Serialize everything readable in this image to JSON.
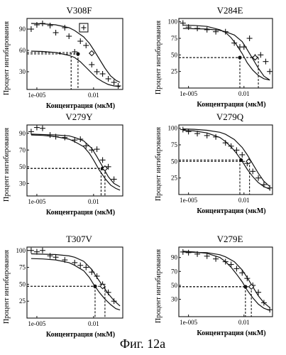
{
  "figure_caption": "Фиг. 12а",
  "chart_data": [
    {
      "type": "line",
      "title": "V308F",
      "xlabel": "Концентрация (мкМ)",
      "ylabel": "Процент ингибирования",
      "xscale": "log",
      "xlim": [
        3e-06,
        0.35
      ],
      "xticks": [
        {
          "v": 1e-05,
          "label": "1e-005"
        },
        {
          "v": 0.01,
          "label": "0.01"
        }
      ],
      "ylim": [
        5,
        105
      ],
      "yticks": [
        30,
        60,
        90
      ],
      "series": [
        {
          "style": "curve",
          "x": [
            5e-06,
            2e-05,
            0.0001,
            0.0005,
            0.001,
            0.002,
            0.004,
            0.008,
            0.015,
            0.03,
            0.06,
            0.12,
            0.25
          ],
          "y": [
            59,
            58.5,
            57,
            53,
            50,
            44,
            36,
            28,
            21,
            16,
            12,
            10,
            9
          ]
        },
        {
          "style": "curve",
          "x": [
            5e-06,
            2e-05,
            0.0001,
            0.0005,
            0.001,
            0.003,
            0.006,
            0.01,
            0.02,
            0.04,
            0.08,
            0.15,
            0.25
          ],
          "y": [
            98,
            97.5,
            96,
            92,
            88,
            79,
            70,
            61,
            48,
            35,
            24,
            18,
            15
          ]
        },
        {
          "style": "points",
          "x": [
            5e-06,
            1e-05,
            2e-05,
            5e-05,
            0.0001,
            0.0003,
            0.0005,
            0.001,
            0.002,
            0.004,
            0.008,
            0.015,
            0.03,
            0.06,
            0.12,
            0.2
          ],
          "y": [
            90,
            96,
            98,
            95,
            85,
            92,
            80,
            58,
            73,
            67,
            40,
            30,
            27,
            20,
            15,
            10
          ]
        }
      ],
      "ic50_lines": [
        {
          "y": 57,
          "x": 0.00065
        },
        {
          "y": 55,
          "x": 0.0015
        }
      ],
      "markers": [
        {
          "shape": "circle",
          "x": 0.0015,
          "y": 55
        },
        {
          "shape": "diamond",
          "x": 0.008,
          "y": 56
        },
        {
          "shape": "boxed-plus",
          "x": 0.003,
          "y": 92
        }
      ]
    },
    {
      "type": "line",
      "title": "V284E",
      "xlabel": "Концентрация (мкМ)",
      "ylabel": "Процент ингибирования",
      "xscale": "log",
      "xlim": [
        3e-06,
        0.35
      ],
      "xticks": [
        {
          "v": 1e-05,
          "label": "1e-005"
        },
        {
          "v": 0.01,
          "label": "0.01"
        }
      ],
      "ylim": [
        0,
        105
      ],
      "yticks": [
        25,
        50,
        75,
        100
      ],
      "series": [
        {
          "style": "curve",
          "x": [
            5e-06,
            2e-05,
            0.0001,
            0.0005,
            0.001,
            0.002,
            0.004,
            0.008,
            0.015,
            0.03,
            0.06,
            0.12,
            0.25
          ],
          "y": [
            95,
            94.5,
            93,
            88,
            84,
            76,
            65,
            52,
            38,
            27,
            19,
            14,
            12
          ]
        },
        {
          "style": "curve",
          "x": [
            5e-06,
            2e-05,
            0.0001,
            0.0005,
            0.001,
            0.003,
            0.008,
            0.015,
            0.03,
            0.06,
            0.12,
            0.25
          ],
          "y": [
            90,
            89.5,
            89,
            87,
            85,
            80,
            70,
            58,
            44,
            30,
            18,
            12
          ]
        },
        {
          "style": "points",
          "x": [
            5e-06,
            1e-05,
            3e-05,
            0.0001,
            0.0003,
            0.001,
            0.003,
            0.006,
            0.01,
            0.02,
            0.04,
            0.08,
            0.15,
            0.25
          ],
          "y": [
            98,
            92,
            90,
            88,
            85,
            85,
            68,
            62,
            62,
            75,
            47,
            50,
            40,
            25
          ]
        }
      ],
      "ic50_lines": [
        {
          "y": 46,
          "x": 0.006
        },
        {
          "y": 46,
          "x": 0.06
        }
      ],
      "markers": [
        {
          "shape": "circle",
          "x": 0.006,
          "y": 46
        },
        {
          "shape": "diamond",
          "x": 0.04,
          "y": 46
        }
      ]
    },
    {
      "type": "line",
      "title": "V279Y",
      "xlabel": "Концентрация (мкМ)",
      "ylabel": "Процент ингибирования",
      "xscale": "log",
      "xlim": [
        3e-06,
        0.35
      ],
      "xticks": [
        {
          "v": 1e-05,
          "label": "1e-005"
        },
        {
          "v": 0.01,
          "label": "0.01"
        }
      ],
      "ylim": [
        15,
        100
      ],
      "yticks": [
        30,
        50,
        70,
        90
      ],
      "series": [
        {
          "style": "curve",
          "x": [
            5e-06,
            2e-05,
            0.0001,
            0.0005,
            0.001,
            0.003,
            0.006,
            0.01,
            0.02,
            0.04,
            0.08,
            0.15,
            0.25
          ],
          "y": [
            88,
            87.5,
            86,
            83,
            80,
            74,
            66,
            58,
            46,
            36,
            28,
            24,
            22
          ]
        },
        {
          "style": "curve",
          "x": [
            5e-06,
            2e-05,
            0.0001,
            0.0005,
            0.001,
            0.003,
            0.008,
            0.015,
            0.03,
            0.06,
            0.12,
            0.25
          ],
          "y": [
            89,
            88.5,
            88,
            87,
            85,
            81,
            72,
            62,
            50,
            38,
            30,
            26
          ]
        },
        {
          "style": "points",
          "x": [
            5e-06,
            1e-05,
            2e-05,
            5e-05,
            0.0001,
            0.0003,
            0.001,
            0.002,
            0.004,
            0.008,
            0.015,
            0.03,
            0.06,
            0.12
          ],
          "y": [
            92,
            97,
            96,
            88,
            86,
            85,
            82,
            83,
            75,
            70,
            71,
            58,
            50,
            35
          ]
        }
      ],
      "ic50_lines": [
        {
          "y": 48,
          "x": 0.025
        },
        {
          "y": 48,
          "x": 0.04
        }
      ],
      "markers": [
        {
          "shape": "circle",
          "x": 0.03,
          "y": 48
        },
        {
          "shape": "diamond",
          "x": 0.04,
          "y": 48
        }
      ]
    },
    {
      "type": "line",
      "title": "V279Q",
      "xlabel": "Концентрация (мкМ)",
      "ylabel": "Процент ингибирования",
      "xscale": "log",
      "xlim": [
        3e-06,
        0.35
      ],
      "xticks": [
        {
          "v": 1e-05,
          "label": "1e-005"
        },
        {
          "v": 0.01,
          "label": "0.01"
        }
      ],
      "ylim": [
        0,
        105
      ],
      "yticks": [
        25,
        50,
        75,
        100
      ],
      "series": [
        {
          "style": "curve",
          "x": [
            5e-06,
            2e-05,
            0.0001,
            0.0005,
            0.001,
            0.002,
            0.004,
            0.008,
            0.015,
            0.03,
            0.06,
            0.12,
            0.25
          ],
          "y": [
            97,
            96,
            93,
            86,
            80,
            72,
            62,
            50,
            38,
            27,
            18,
            12,
            8
          ]
        },
        {
          "style": "curve",
          "x": [
            5e-06,
            2e-05,
            0.0001,
            0.0005,
            0.001,
            0.003,
            0.008,
            0.015,
            0.03,
            0.06,
            0.12,
            0.25
          ],
          "y": [
            99,
            98.5,
            97,
            94,
            91,
            83,
            71,
            60,
            46,
            32,
            20,
            12
          ]
        },
        {
          "style": "points",
          "x": [
            5e-06,
            1e-05,
            3e-05,
            0.0001,
            0.0003,
            0.001,
            0.002,
            0.004,
            0.008,
            0.015,
            0.03,
            0.06,
            0.12,
            0.25
          ],
          "y": [
            98,
            95,
            92,
            89,
            87,
            78,
            73,
            67,
            60,
            47,
            35,
            25,
            15,
            10
          ]
        }
      ],
      "ic50_lines": [
        {
          "y": 52,
          "x": 0.006
        },
        {
          "y": 50,
          "x": 0.02
        }
      ],
      "markers": [
        {
          "shape": "circle",
          "x": 0.007,
          "y": 52
        },
        {
          "shape": "diamond",
          "x": 0.018,
          "y": 50
        }
      ]
    },
    {
      "type": "line",
      "title": "T307V",
      "xlabel": "Концентрация (мкМ)",
      "ylabel": "Процент ингибирования",
      "xscale": "log",
      "xlim": [
        3e-06,
        0.35
      ],
      "xticks": [
        {
          "v": 1e-05,
          "label": "1e-005"
        },
        {
          "v": 0.01,
          "label": "0.01"
        }
      ],
      "ylim": [
        0,
        105
      ],
      "yticks": [
        25,
        50,
        75,
        100
      ],
      "series": [
        {
          "style": "curve",
          "x": [
            5e-06,
            2e-05,
            0.0001,
            0.0005,
            0.001,
            0.003,
            0.006,
            0.01,
            0.02,
            0.04,
            0.08,
            0.15,
            0.25
          ],
          "y": [
            88,
            87.5,
            86,
            82,
            78,
            70,
            60,
            50,
            38,
            28,
            20,
            14,
            12
          ]
        },
        {
          "style": "curve",
          "x": [
            5e-06,
            2e-05,
            0.0001,
            0.0005,
            0.001,
            0.003,
            0.008,
            0.015,
            0.03,
            0.06,
            0.12,
            0.25
          ],
          "y": [
            95,
            94.5,
            94,
            92,
            90,
            84,
            72,
            60,
            48,
            36,
            26,
            18
          ]
        },
        {
          "style": "points",
          "x": [
            5e-06,
            1e-05,
            2e-05,
            5e-05,
            0.0001,
            0.0003,
            0.001,
            0.002,
            0.004,
            0.008,
            0.015,
            0.03,
            0.06,
            0.12
          ],
          "y": [
            100,
            98,
            100,
            92,
            90,
            86,
            82,
            78,
            75,
            68,
            62,
            50,
            38,
            25
          ]
        }
      ],
      "ic50_lines": [
        {
          "y": 47,
          "x": 0.012
        },
        {
          "y": 47,
          "x": 0.04
        }
      ],
      "markers": [
        {
          "shape": "circle",
          "x": 0.012,
          "y": 47
        },
        {
          "shape": "diamond",
          "x": 0.03,
          "y": 47
        }
      ]
    },
    {
      "type": "line",
      "title": "V279E",
      "xlabel": "Концентрация (мкМ)",
      "ylabel": "Процент ингибирования",
      "xscale": "log",
      "xlim": [
        3e-06,
        0.35
      ],
      "xticks": [
        {
          "v": 1e-05,
          "label": "1e-005"
        },
        {
          "v": 0.01,
          "label": "0.01"
        }
      ],
      "ylim": [
        5,
        105
      ],
      "yticks": [
        30,
        50,
        70,
        90
      ],
      "series": [
        {
          "style": "curve",
          "x": [
            5e-06,
            2e-05,
            0.0001,
            0.0005,
            0.001,
            0.002,
            0.004,
            0.008,
            0.015,
            0.03,
            0.06,
            0.12,
            0.25
          ],
          "y": [
            99,
            98,
            96,
            90,
            84,
            76,
            66,
            55,
            43,
            32,
            23,
            17,
            14
          ]
        },
        {
          "style": "curve",
          "x": [
            5e-06,
            2e-05,
            0.0001,
            0.0005,
            0.001,
            0.003,
            0.008,
            0.015,
            0.03,
            0.06,
            0.12,
            0.25
          ],
          "y": [
            98,
            97.5,
            97,
            94,
            91,
            84,
            72,
            61,
            48,
            35,
            25,
            18
          ]
        },
        {
          "style": "points",
          "x": [
            5e-06,
            1e-05,
            3e-05,
            0.0001,
            0.0003,
            0.001,
            0.002,
            0.004,
            0.008,
            0.015,
            0.03,
            0.06,
            0.12,
            0.25
          ],
          "y": [
            98,
            97,
            95,
            92,
            88,
            84,
            80,
            74,
            68,
            60,
            50,
            40,
            25,
            15
          ]
        }
      ],
      "ic50_lines": [
        {
          "y": 48,
          "x": 0.012
        },
        {
          "y": 48,
          "x": 0.025
        }
      ],
      "markers": [
        {
          "shape": "circle",
          "x": 0.012,
          "y": 48
        },
        {
          "shape": "diamond",
          "x": 0.025,
          "y": 48
        }
      ]
    }
  ]
}
